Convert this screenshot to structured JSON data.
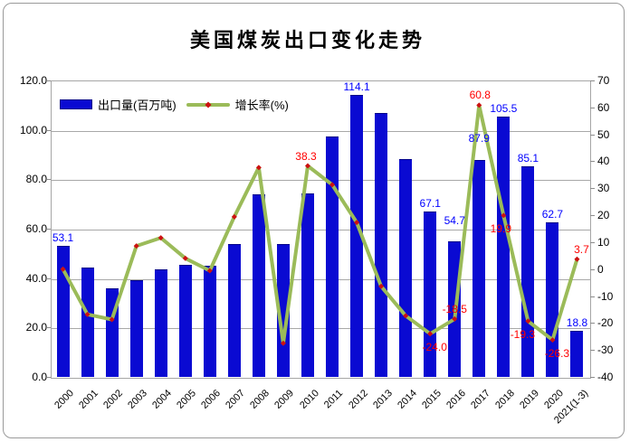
{
  "title": "美国煤炭出口变化走势",
  "legend": [
    {
      "label": "出口量(百万吨)",
      "type": "bar"
    },
    {
      "label": "增长率(%)",
      "type": "line"
    }
  ],
  "colors": {
    "bar_fill": "#0a0ad2",
    "bar_border": "#000088",
    "line": "#9BBB59",
    "marker": "#cc1111",
    "bar_label": "#0000ff",
    "line_label": "#ff0000",
    "grid": "#a8a8a8",
    "axis_text": "#000000"
  },
  "chart_data": {
    "type": "bar",
    "subtype": "bar+line combo",
    "title": "美国煤炭出口变化走势",
    "categories": [
      "2000",
      "2001",
      "2002",
      "2003",
      "2004",
      "2005",
      "2006",
      "2007",
      "2008",
      "2009",
      "2010",
      "2011",
      "2012",
      "2013",
      "2014",
      "2015",
      "2016",
      "2017",
      "2018",
      "2019",
      "2020",
      "2021(1-3)"
    ],
    "series": [
      {
        "name": "出口量(百万吨)",
        "type": "bar",
        "axis": "left",
        "values": [
          53.1,
          44.2,
          35.9,
          39.0,
          43.5,
          45.3,
          45.0,
          53.7,
          73.9,
          53.6,
          74.1,
          97.3,
          114.1,
          106.7,
          88.3,
          67.1,
          54.7,
          87.9,
          105.5,
          85.1,
          62.7,
          18.8
        ],
        "shown_labels": [
          {
            "index": 0,
            "text": "53.1"
          },
          {
            "index": 12,
            "text": "114.1"
          },
          {
            "index": 15,
            "text": "67.1"
          },
          {
            "index": 16,
            "text": "54.7",
            "dy": -14
          },
          {
            "index": 17,
            "text": "87.9",
            "dy": -15
          },
          {
            "index": 18,
            "text": "105.5"
          },
          {
            "index": 19,
            "text": "85.1"
          },
          {
            "index": 20,
            "text": "62.7"
          },
          {
            "index": 21,
            "text": "18.8"
          }
        ]
      },
      {
        "name": "增长率(%)",
        "type": "line",
        "axis": "right",
        "values": [
          0.0,
          -16.8,
          -18.7,
          8.6,
          11.6,
          4.0,
          -0.6,
          19.4,
          37.7,
          -27.5,
          38.3,
          31.3,
          17.3,
          -6.4,
          -17.3,
          -24.0,
          -18.5,
          60.8,
          19.9,
          -19.3,
          -26.3,
          3.7
        ],
        "shown_labels": [
          {
            "index": 10,
            "text": "38.3",
            "side": "above",
            "dx": -2
          },
          {
            "index": 15,
            "text": "-24.0",
            "side": "below",
            "dx": 5
          },
          {
            "index": 16,
            "text": "-18.5",
            "side": "above",
            "dx": 0
          },
          {
            "index": 17,
            "text": "60.8",
            "side": "above",
            "dx": 1
          },
          {
            "index": 18,
            "text": "19.9",
            "side": "below",
            "dx": -3
          },
          {
            "index": 19,
            "text": "-19.3",
            "side": "below",
            "dx": -6
          },
          {
            "index": 20,
            "text": "-26.3",
            "side": "below",
            "dx": 5
          },
          {
            "index": 21,
            "text": "3.7",
            "side": "above",
            "dx": 5
          }
        ]
      }
    ],
    "left_axis": {
      "label": "",
      "min": 0,
      "max": 120,
      "step": 20,
      "tick_labels": [
        "0.0",
        "20.0",
        "40.0",
        "60.0",
        "80.0",
        "100.0",
        "120.0"
      ]
    },
    "right_axis": {
      "label": "",
      "min": -40,
      "max": 70,
      "step": 10,
      "tick_labels": [
        "-40",
        "-30",
        "-20",
        "-10",
        "0",
        "10",
        "20",
        "30",
        "40",
        "50",
        "60",
        "70"
      ]
    },
    "grid": "horizontal gridlines at left-axis major ticks",
    "legend_position": "inside top-left"
  }
}
